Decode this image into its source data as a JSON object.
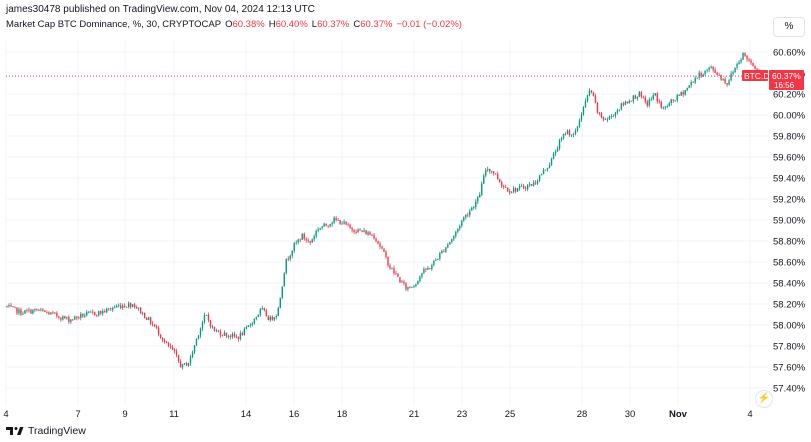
{
  "header": {
    "published_line": "james30478 published on TradingView.com, Nov 04, 2024 12:13 UTC"
  },
  "legend": {
    "symbol": "Market Cap BTC Dominance, %, 30, CRYPTOCAP",
    "open_label": "O",
    "open_value": "60.38%",
    "high_label": "H",
    "high_value": "60.40%",
    "low_label": "L",
    "low_value": "60.37%",
    "close_label": "C",
    "close_value": "60.37%",
    "change": "−0.01 (−0.02%)"
  },
  "scale_button": {
    "label": "%"
  },
  "price_tag": {
    "symbol": "BTC.D",
    "price": "60.37%",
    "countdown": "16:56"
  },
  "footer": {
    "brand": "TradingView"
  },
  "colors": {
    "up": "#089981",
    "down": "#f23645",
    "grid": "#f0f3fa",
    "text": "#131722"
  },
  "chart_data": {
    "type": "candlestick",
    "ylim": [
      57.3,
      60.65
    ],
    "yticks": [
      "60.60%",
      "60.40%",
      "60.20%",
      "60.00%",
      "59.80%",
      "59.60%",
      "59.40%",
      "59.20%",
      "59.00%",
      "58.80%",
      "58.60%",
      "58.40%",
      "58.20%",
      "58.00%",
      "57.80%",
      "57.60%",
      "57.40%"
    ],
    "ytick_values": [
      60.6,
      60.4,
      60.2,
      60.0,
      59.8,
      59.6,
      59.4,
      59.2,
      59.0,
      58.8,
      58.6,
      58.4,
      58.2,
      58.0,
      57.8,
      57.6,
      57.4
    ],
    "xticks": [
      "4",
      "7",
      "9",
      "11",
      "14",
      "16",
      "18",
      "21",
      "23",
      "25",
      "28",
      "30",
      "Nov",
      "4"
    ],
    "xtick_bold": [
      false,
      false,
      false,
      false,
      false,
      false,
      false,
      false,
      false,
      false,
      false,
      false,
      true,
      false
    ],
    "last_price": 60.37,
    "path": [
      [
        0,
        58.18
      ],
      [
        4,
        58.12
      ],
      [
        8,
        58.14
      ],
      [
        12,
        58.1
      ],
      [
        16,
        58.05
      ],
      [
        20,
        58.1
      ],
      [
        24,
        58.12
      ],
      [
        28,
        58.18
      ],
      [
        32,
        58.2
      ],
      [
        36,
        58.04
      ],
      [
        38,
        57.95
      ],
      [
        40,
        57.82
      ],
      [
        42,
        57.75
      ],
      [
        44,
        57.6
      ],
      [
        46,
        57.65
      ],
      [
        48,
        57.9
      ],
      [
        50,
        58.1
      ],
      [
        52,
        57.95
      ],
      [
        54,
        57.92
      ],
      [
        56,
        57.9
      ],
      [
        58,
        57.88
      ],
      [
        60,
        57.95
      ],
      [
        62,
        58.05
      ],
      [
        64,
        58.15
      ],
      [
        66,
        58.05
      ],
      [
        68,
        58.12
      ],
      [
        70,
        58.6
      ],
      [
        72,
        58.75
      ],
      [
        74,
        58.85
      ],
      [
        76,
        58.78
      ],
      [
        78,
        58.92
      ],
      [
        80,
        58.95
      ],
      [
        82,
        59.0
      ],
      [
        84,
        58.98
      ],
      [
        86,
        58.92
      ],
      [
        88,
        58.9
      ],
      [
        90,
        58.88
      ],
      [
        92,
        58.85
      ],
      [
        94,
        58.72
      ],
      [
        96,
        58.55
      ],
      [
        98,
        58.45
      ],
      [
        100,
        58.35
      ],
      [
        102,
        58.38
      ],
      [
        104,
        58.5
      ],
      [
        106,
        58.55
      ],
      [
        108,
        58.65
      ],
      [
        110,
        58.75
      ],
      [
        112,
        58.85
      ],
      [
        114,
        59.0
      ],
      [
        116,
        59.1
      ],
      [
        118,
        59.2
      ],
      [
        120,
        59.5
      ],
      [
        122,
        59.45
      ],
      [
        124,
        59.33
      ],
      [
        126,
        59.28
      ],
      [
        128,
        59.3
      ],
      [
        130,
        59.32
      ],
      [
        132,
        59.35
      ],
      [
        134,
        59.45
      ],
      [
        136,
        59.55
      ],
      [
        138,
        59.72
      ],
      [
        140,
        59.85
      ],
      [
        142,
        59.8
      ],
      [
        144,
        60.05
      ],
      [
        146,
        60.25
      ],
      [
        148,
        60.0
      ],
      [
        150,
        59.95
      ],
      [
        152,
        60.02
      ],
      [
        154,
        60.1
      ],
      [
        156,
        60.15
      ],
      [
        158,
        60.2
      ],
      [
        160,
        60.1
      ],
      [
        162,
        60.2
      ],
      [
        164,
        60.05
      ],
      [
        166,
        60.12
      ],
      [
        168,
        60.18
      ],
      [
        170,
        60.25
      ],
      [
        172,
        60.35
      ],
      [
        174,
        60.4
      ],
      [
        176,
        60.45
      ],
      [
        178,
        60.38
      ],
      [
        180,
        60.3
      ],
      [
        182,
        60.45
      ],
      [
        184,
        60.58
      ],
      [
        186,
        60.5
      ],
      [
        188,
        60.42
      ],
      [
        189,
        60.37
      ]
    ]
  }
}
